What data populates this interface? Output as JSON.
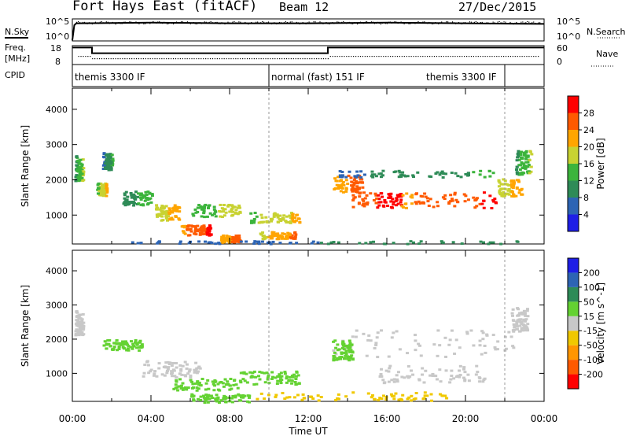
{
  "header": {
    "station": "Fort Hays East (fitACF)",
    "beam": "Beam 12",
    "date": "27/Dec/2015"
  },
  "labels": {
    "nsky": "N.Sky",
    "nsearch": "N.Search",
    "freq": "Freq.",
    "freq_unit": "[MHz]",
    "nave": "Nave",
    "cpid": "CPID",
    "xlabel": "Time UT",
    "slant_range": "Slant Range [km]"
  },
  "noise_panel": {
    "left_ticks": [
      "10^5",
      "10^0"
    ],
    "right_ticks": [
      "10^5",
      "10^0"
    ]
  },
  "freq_panel": {
    "left_ticks": [
      "18",
      "8"
    ],
    "right_ticks": [
      "60",
      "0"
    ]
  },
  "cpid_segments": [
    {
      "text": "themis 3300 IF",
      "start": 0.0,
      "end": 10.0
    },
    {
      "text": "normal (fast) 151 IF",
      "start": 10.0,
      "end": 22.0
    },
    {
      "text": "themis 3300 IF",
      "start": 22.0,
      "end": 24.0
    }
  ],
  "colors": {
    "power_scale": [
      "#1e1ee6",
      "#2d64b4",
      "#2e8b57",
      "#3cb43c",
      "#c8d232",
      "#ffa500",
      "#ff5a00",
      "#ff0000"
    ],
    "velocity_scale": [
      "#ff0000",
      "#ff5a00",
      "#ff9600",
      "#f0c800",
      "#c8c8c8",
      "#64d232",
      "#2e8b57",
      "#2d64b4",
      "#1e1ee6"
    ]
  },
  "chart_data": [
    {
      "type": "line",
      "name": "noise",
      "x_range": [
        0,
        24
      ],
      "series": [
        {
          "x": [
            0,
            0.1,
            0.2,
            4,
            8,
            12,
            16,
            20,
            24
          ],
          "values": [
            0.1,
            2.5,
            2.8,
            2.9,
            2.8,
            2.8,
            2.9,
            2.8,
            2.7
          ]
        }
      ]
    },
    {
      "type": "line",
      "name": "frequency-nave",
      "x_range": [
        0,
        24
      ],
      "freq_ylim": [
        8,
        18
      ],
      "series": [
        {
          "x": [
            0,
            1,
            1,
            13,
            13,
            24
          ],
          "values": [
            17,
            17,
            14,
            14,
            17,
            17
          ]
        }
      ]
    },
    {
      "type": "heatmap",
      "name": "power",
      "x_range": [
        0,
        24
      ],
      "y_range": [
        180,
        4600
      ],
      "yticks": [
        "1000",
        "2000",
        "3000",
        "4000"
      ],
      "colorbar": {
        "label": "Power [dB]",
        "ticks": [
          "4",
          "8",
          "12",
          "16",
          "20",
          "24",
          "28"
        ],
        "range": [
          0,
          32
        ]
      },
      "regions": [
        {
          "t": 0.1,
          "r": 2350,
          "dt": 0.4,
          "dr": 700,
          "v": 14
        },
        {
          "t": 1.2,
          "r": 1750,
          "dt": 0.5,
          "dr": 350,
          "v": 18
        },
        {
          "t": 1.5,
          "r": 2550,
          "dt": 0.5,
          "dr": 500,
          "v": 10
        },
        {
          "t": 2.5,
          "r": 1500,
          "dt": 1.5,
          "dr": 400,
          "v": 12
        },
        {
          "t": 4.2,
          "r": 1100,
          "dt": 1.2,
          "dr": 450,
          "v": 20
        },
        {
          "t": 5.5,
          "r": 600,
          "dt": 1.5,
          "dr": 300,
          "v": 26
        },
        {
          "t": 6.0,
          "r": 1150,
          "dt": 2.5,
          "dr": 350,
          "v": 16
        },
        {
          "t": 7.5,
          "r": 350,
          "dt": 1.0,
          "dr": 200,
          "v": 24
        },
        {
          "t": 9.0,
          "r": 950,
          "dt": 2.5,
          "dr": 300,
          "v": 18
        },
        {
          "t": 9.5,
          "r": 450,
          "dt": 1.8,
          "dr": 200,
          "v": 22
        },
        {
          "t": 13.2,
          "r": 1900,
          "dt": 1.5,
          "dr": 500,
          "v": 24
        },
        {
          "t": 14.2,
          "r": 1450,
          "dt": 2.5,
          "dr": 450,
          "v": 28
        },
        {
          "t": 16.5,
          "r": 1450,
          "dt": 5.0,
          "dr": 450,
          "v": 26
        },
        {
          "t": 13.5,
          "r": 2200,
          "dt": 8.0,
          "dr": 200,
          "v": 10
        },
        {
          "t": 21.6,
          "r": 1800,
          "dt": 1.3,
          "dr": 500,
          "v": 20
        },
        {
          "t": 22.5,
          "r": 2500,
          "dt": 0.8,
          "dr": 700,
          "v": 14
        },
        {
          "t": 2.0,
          "r": 250,
          "dt": 21.0,
          "dr": 80,
          "v": 8
        }
      ]
    },
    {
      "type": "heatmap",
      "name": "velocity",
      "x_range": [
        0,
        24
      ],
      "y_range": [
        180,
        4600
      ],
      "yticks": [
        "1000",
        "2000",
        "3000",
        "4000"
      ],
      "colorbar": {
        "label": "Velocity [m s^-1]",
        "ticks": [
          "200",
          "100",
          "50",
          "15",
          "-15",
          "-50",
          "-100",
          "-200"
        ],
        "range": [
          -300,
          300
        ]
      },
      "regions": [
        {
          "t": 0.1,
          "r": 2500,
          "dt": 0.4,
          "dr": 700,
          "v": 0
        },
        {
          "t": 1.5,
          "r": 1850,
          "dt": 2.0,
          "dr": 300,
          "v": 40
        },
        {
          "t": 3.5,
          "r": 1150,
          "dt": 3.0,
          "dr": 500,
          "v": 0
        },
        {
          "t": 5.0,
          "r": 700,
          "dt": 3.5,
          "dr": 350,
          "v": 60
        },
        {
          "t": 6.0,
          "r": 300,
          "dt": 3.0,
          "dr": 250,
          "v": 80
        },
        {
          "t": 8.5,
          "r": 900,
          "dt": 3.0,
          "dr": 400,
          "v": 40
        },
        {
          "t": 13.0,
          "r": 1900,
          "dt": 9.5,
          "dr": 800,
          "v": 0
        },
        {
          "t": 15.5,
          "r": 1000,
          "dt": 5.5,
          "dr": 500,
          "v": 0
        },
        {
          "t": 13.2,
          "r": 1700,
          "dt": 1.0,
          "dr": 600,
          "v": 40
        },
        {
          "t": 22.3,
          "r": 2600,
          "dt": 0.8,
          "dr": 700,
          "v": 0
        },
        {
          "t": 9.0,
          "r": 350,
          "dt": 10.0,
          "dr": 250,
          "v": -40
        }
      ]
    }
  ],
  "x_ticks": [
    "00:00",
    "04:00",
    "08:00",
    "12:00",
    "16:00",
    "20:00",
    "00:00"
  ]
}
